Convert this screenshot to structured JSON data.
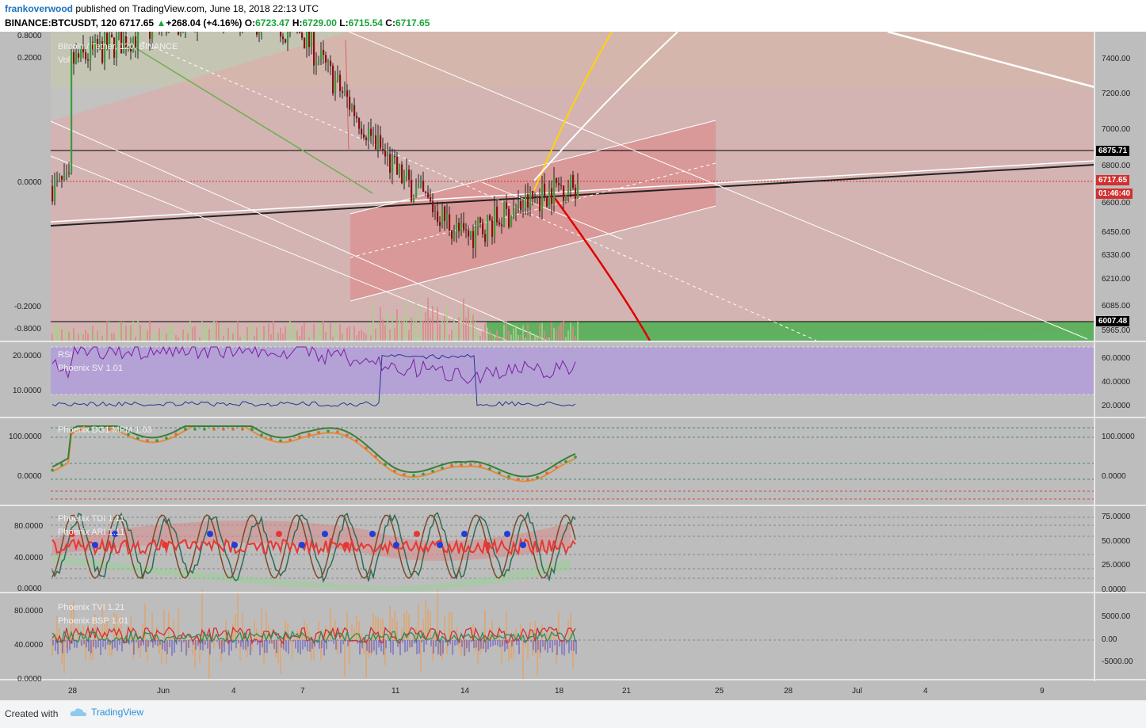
{
  "header": {
    "author": "frankoverwood",
    "published_text": "published on TradingView.com, June 18, 2018 22:13 UTC",
    "symbol": "BINANCE:BTCUSDT, 120",
    "last": "6717.65",
    "change": "+268.04 (+4.16%)",
    "open_label": "O:",
    "open": "6723.47",
    "high_label": "H:",
    "high": "6729.00",
    "low_label": "L:",
    "low": "6715.54",
    "close_label": "C:",
    "close": "6717.65"
  },
  "footer": {
    "created_with": "Created with",
    "brand": "TradingView"
  },
  "colors": {
    "background": "#bdbdbd",
    "candle_up": "#3d9a3d",
    "candle_down": "#8b0f0f",
    "channel_fill": "#e9a3a3",
    "rsi_band": "#b39ddb",
    "green_zone": "#4caf50",
    "red_curve": "#e00000",
    "yellow_line": "#ffd400"
  },
  "panes": {
    "main": {
      "title": "Bitcoin / Tether, 120, BINANCE",
      "subtitle": "Vol",
      "left_ticks": [
        "0.8000",
        "0.2000",
        "0.0000",
        "-0.2000",
        "-0.8000"
      ],
      "right_ticks": [
        "7400.00",
        "7200.00",
        "7000.00",
        "6800.00",
        "6600.00",
        "6450.00",
        "6330.00",
        "6210.00",
        "6085.00",
        "5965.00"
      ],
      "badges": [
        {
          "label": "6875.71",
          "color": "#000000"
        },
        {
          "label": "6717.65",
          "color": "#d32f2f"
        },
        {
          "label": "01:46:40",
          "color": "#d32f2f"
        },
        {
          "label": "6007.48",
          "color": "#000000"
        }
      ]
    },
    "rsi": {
      "title": "RSI",
      "subtitle": "Phoenix SV 1.01",
      "left_ticks": [
        "20.0000",
        "10.0000"
      ],
      "right_ticks": [
        "60.0000",
        "40.0000",
        "20.0000"
      ]
    },
    "dg": {
      "title": "Phoenix DG1 MPM 1.03",
      "left_ticks": [
        "100.0000",
        "0.0000"
      ],
      "right_ticks": [
        "100.0000",
        "0.0000"
      ]
    },
    "tdi": {
      "title": "Phoenix TDI 1.11",
      "subtitle": "Phoenix ARI 1.11",
      "left_ticks": [
        "80.0000",
        "40.0000",
        "0.0000"
      ],
      "right_ticks": [
        "75.0000",
        "50.0000",
        "25.0000",
        "0.0000"
      ]
    },
    "tvi": {
      "title": "Phoenix TVI 1.21",
      "subtitle": "Phoenix BSP 1.01",
      "left_ticks": [
        "80.0000",
        "40.0000",
        "0.0000"
      ],
      "right_ticks": [
        "5000.00",
        "0.00",
        "-5000.00"
      ]
    }
  },
  "x_axis_labels": [
    "28",
    "Jun",
    "4",
    "7",
    "11",
    "14",
    "18",
    "21",
    "25",
    "28",
    "Jul",
    "4",
    "9"
  ],
  "chart_data": {
    "type": "line",
    "title": "Bitcoin / Tether, 120, BINANCE",
    "x": [
      "28",
      "Jun",
      "4",
      "7",
      "11",
      "14",
      "18"
    ],
    "series": [
      {
        "name": "BINANCE:BTCUSDT, 120",
        "values": [
          7350,
          7550,
          7600,
          7500,
          6800,
          6450,
          6717.65
        ]
      }
    ],
    "ylim": [
      5965,
      7500
    ],
    "ohlc_last": {
      "open": 6723.47,
      "high": 6729.0,
      "low": 6715.54,
      "close": 6717.65
    }
  }
}
